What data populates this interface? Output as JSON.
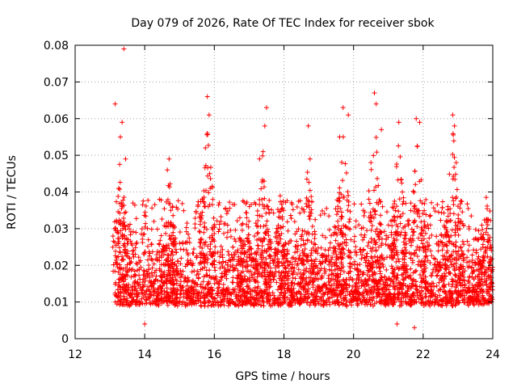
{
  "chart_data": {
    "type": "scatter",
    "title": "Day 079 of 2026, Rate Of TEC Index for receiver sbok",
    "xlabel": "GPS time / hours",
    "ylabel": "ROTI / TECUs",
    "xlim": [
      12,
      24
    ],
    "ylim": [
      0,
      0.08
    ],
    "x_ticks": [
      12,
      14,
      16,
      18,
      20,
      22,
      24
    ],
    "x_tick_labels": [
      "12",
      "14",
      "16",
      "18",
      "20",
      "22",
      "24"
    ],
    "y_ticks": [
      0,
      0.01,
      0.02,
      0.03,
      0.04,
      0.05,
      0.06,
      0.07,
      0.08
    ],
    "y_tick_labels": [
      "0",
      "0.01",
      "0.02",
      "0.03",
      "0.04",
      "0.05",
      "0.06",
      "0.07",
      "0.08"
    ],
    "grid": true,
    "marker": "plus",
    "color": "#ff0000",
    "data_start_hour": 13.15,
    "data_end_hour": 24.0,
    "baseline_band": [
      0.006,
      0.025
    ],
    "outliers": [
      {
        "x": 13.15,
        "y": 0.064
      },
      {
        "x": 13.35,
        "y": 0.059
      },
      {
        "x": 13.3,
        "y": 0.055
      },
      {
        "x": 13.4,
        "y": 0.079
      },
      {
        "x": 13.45,
        "y": 0.049
      },
      {
        "x": 14.7,
        "y": 0.049
      },
      {
        "x": 14.65,
        "y": 0.046
      },
      {
        "x": 15.8,
        "y": 0.066
      },
      {
        "x": 15.85,
        "y": 0.061
      },
      {
        "x": 15.8,
        "y": 0.056
      },
      {
        "x": 17.5,
        "y": 0.063
      },
      {
        "x": 17.45,
        "y": 0.058
      },
      {
        "x": 17.3,
        "y": 0.049
      },
      {
        "x": 18.7,
        "y": 0.058
      },
      {
        "x": 18.75,
        "y": 0.049
      },
      {
        "x": 19.7,
        "y": 0.063
      },
      {
        "x": 19.85,
        "y": 0.061
      },
      {
        "x": 19.6,
        "y": 0.055
      },
      {
        "x": 20.6,
        "y": 0.067
      },
      {
        "x": 20.65,
        "y": 0.064
      },
      {
        "x": 20.8,
        "y": 0.057
      },
      {
        "x": 21.3,
        "y": 0.059
      },
      {
        "x": 21.8,
        "y": 0.06
      },
      {
        "x": 21.9,
        "y": 0.059
      },
      {
        "x": 22.85,
        "y": 0.061
      },
      {
        "x": 22.9,
        "y": 0.058
      },
      {
        "x": 22.95,
        "y": 0.048
      },
      {
        "x": 21.75,
        "y": 0.003
      },
      {
        "x": 14.0,
        "y": 0.004
      },
      {
        "x": 21.25,
        "y": 0.004
      }
    ],
    "peaks": [
      {
        "x": 13.3,
        "y": 0.052
      },
      {
        "x": 14.7,
        "y": 0.045
      },
      {
        "x": 15.8,
        "y": 0.06
      },
      {
        "x": 16.9,
        "y": 0.038
      },
      {
        "x": 17.4,
        "y": 0.055
      },
      {
        "x": 17.9,
        "y": 0.04
      },
      {
        "x": 18.7,
        "y": 0.048
      },
      {
        "x": 19.7,
        "y": 0.058
      },
      {
        "x": 20.6,
        "y": 0.062
      },
      {
        "x": 21.3,
        "y": 0.055
      },
      {
        "x": 21.85,
        "y": 0.058
      },
      {
        "x": 22.85,
        "y": 0.058
      },
      {
        "x": 23.8,
        "y": 0.04
      }
    ]
  }
}
